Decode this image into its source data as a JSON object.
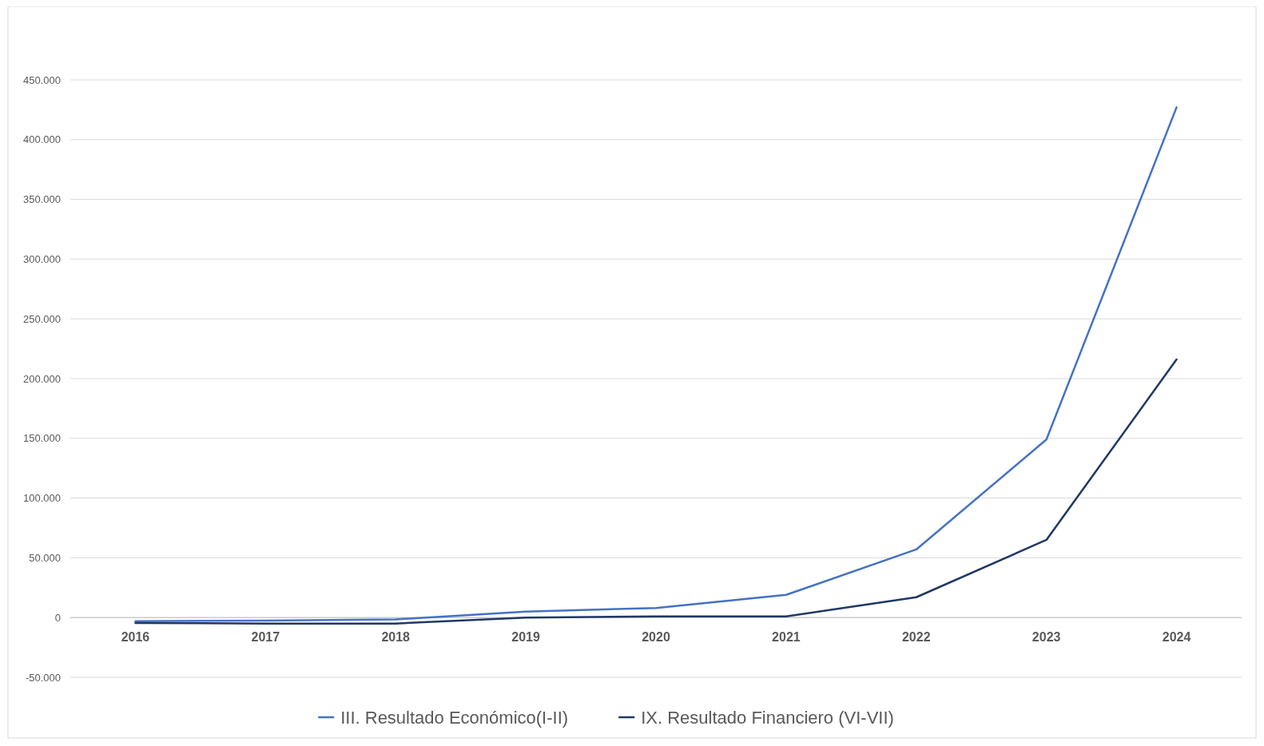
{
  "chart_data": {
    "type": "line",
    "categories": [
      "2016",
      "2017",
      "2018",
      "2019",
      "2020",
      "2021",
      "2022",
      "2023",
      "2024"
    ],
    "series": [
      {
        "name": "III. Resultado Económico(I-II)",
        "color": "#4472c4",
        "values": [
          -3000,
          -2500,
          -1500,
          5000,
          8000,
          19000,
          57000,
          149000,
          427000
        ]
      },
      {
        "name": "IX. Resultado Financiero (VI-VII)",
        "color": "#203864",
        "values": [
          -4500,
          -5000,
          -5000,
          0,
          1000,
          1000,
          17000,
          65000,
          216000
        ]
      }
    ],
    "ylim": [
      -50000,
      450000
    ],
    "yticks": [
      {
        "value": -50000,
        "label": "-50.000"
      },
      0,
      {
        "value": 50000,
        "label": "50.000"
      },
      {
        "value": 100000,
        "label": "100.000"
      },
      {
        "value": 150000,
        "label": "150.000"
      },
      {
        "value": 200000,
        "label": "200.000"
      },
      {
        "value": 250000,
        "label": "250.000"
      },
      {
        "value": 300000,
        "label": "300.000"
      },
      {
        "value": 350000,
        "label": "350.000"
      },
      {
        "value": 400000,
        "label": "400.000"
      },
      {
        "value": 450000,
        "label": "450.000"
      }
    ],
    "grid": "y",
    "legend": "bottom",
    "marker": "none",
    "line_style": "solid"
  }
}
